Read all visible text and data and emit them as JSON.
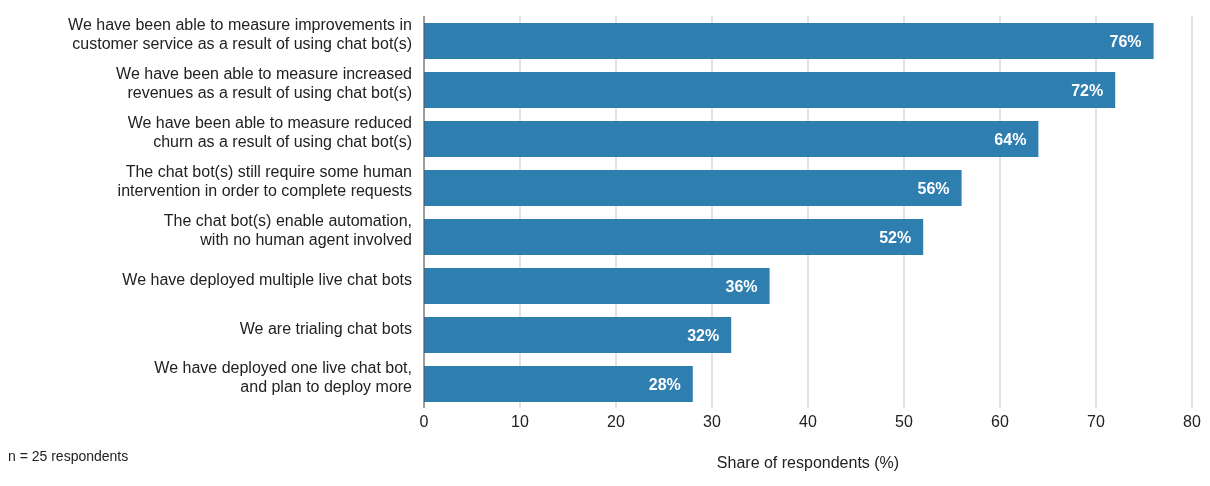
{
  "chart_data": {
    "type": "bar",
    "orientation": "horizontal",
    "categories": [
      "We have been able to measure improvements in\ncustomer service as a result of using chat bot(s)",
      "We have been able to measure increased\nrevenues as a result of using chat bot(s)",
      "We have been able to measure reduced\nchurn as a result of using chat bot(s)",
      "The chat bot(s) still require some human\nintervention in order to complete requests",
      "The chat bot(s) enable automation,\nwith no human agent involved",
      "We have deployed multiple live chat bots",
      "We are trialing chat bots",
      "We have deployed one live chat bot,\nand plan to deploy more"
    ],
    "values": [
      76,
      72,
      64,
      56,
      52,
      36,
      32,
      28
    ],
    "value_labels": [
      "76%",
      "72%",
      "64%",
      "56%",
      "52%",
      "36%",
      "32%",
      "28%"
    ],
    "color": "#2e7eb0",
    "xlim": [
      0,
      80
    ],
    "xticks": [
      0,
      10,
      20,
      30,
      40,
      50,
      60,
      70,
      80
    ],
    "xlabel": "Share of respondents (%)",
    "grid": "x",
    "annotations": [
      "n = 25 respondents"
    ]
  }
}
